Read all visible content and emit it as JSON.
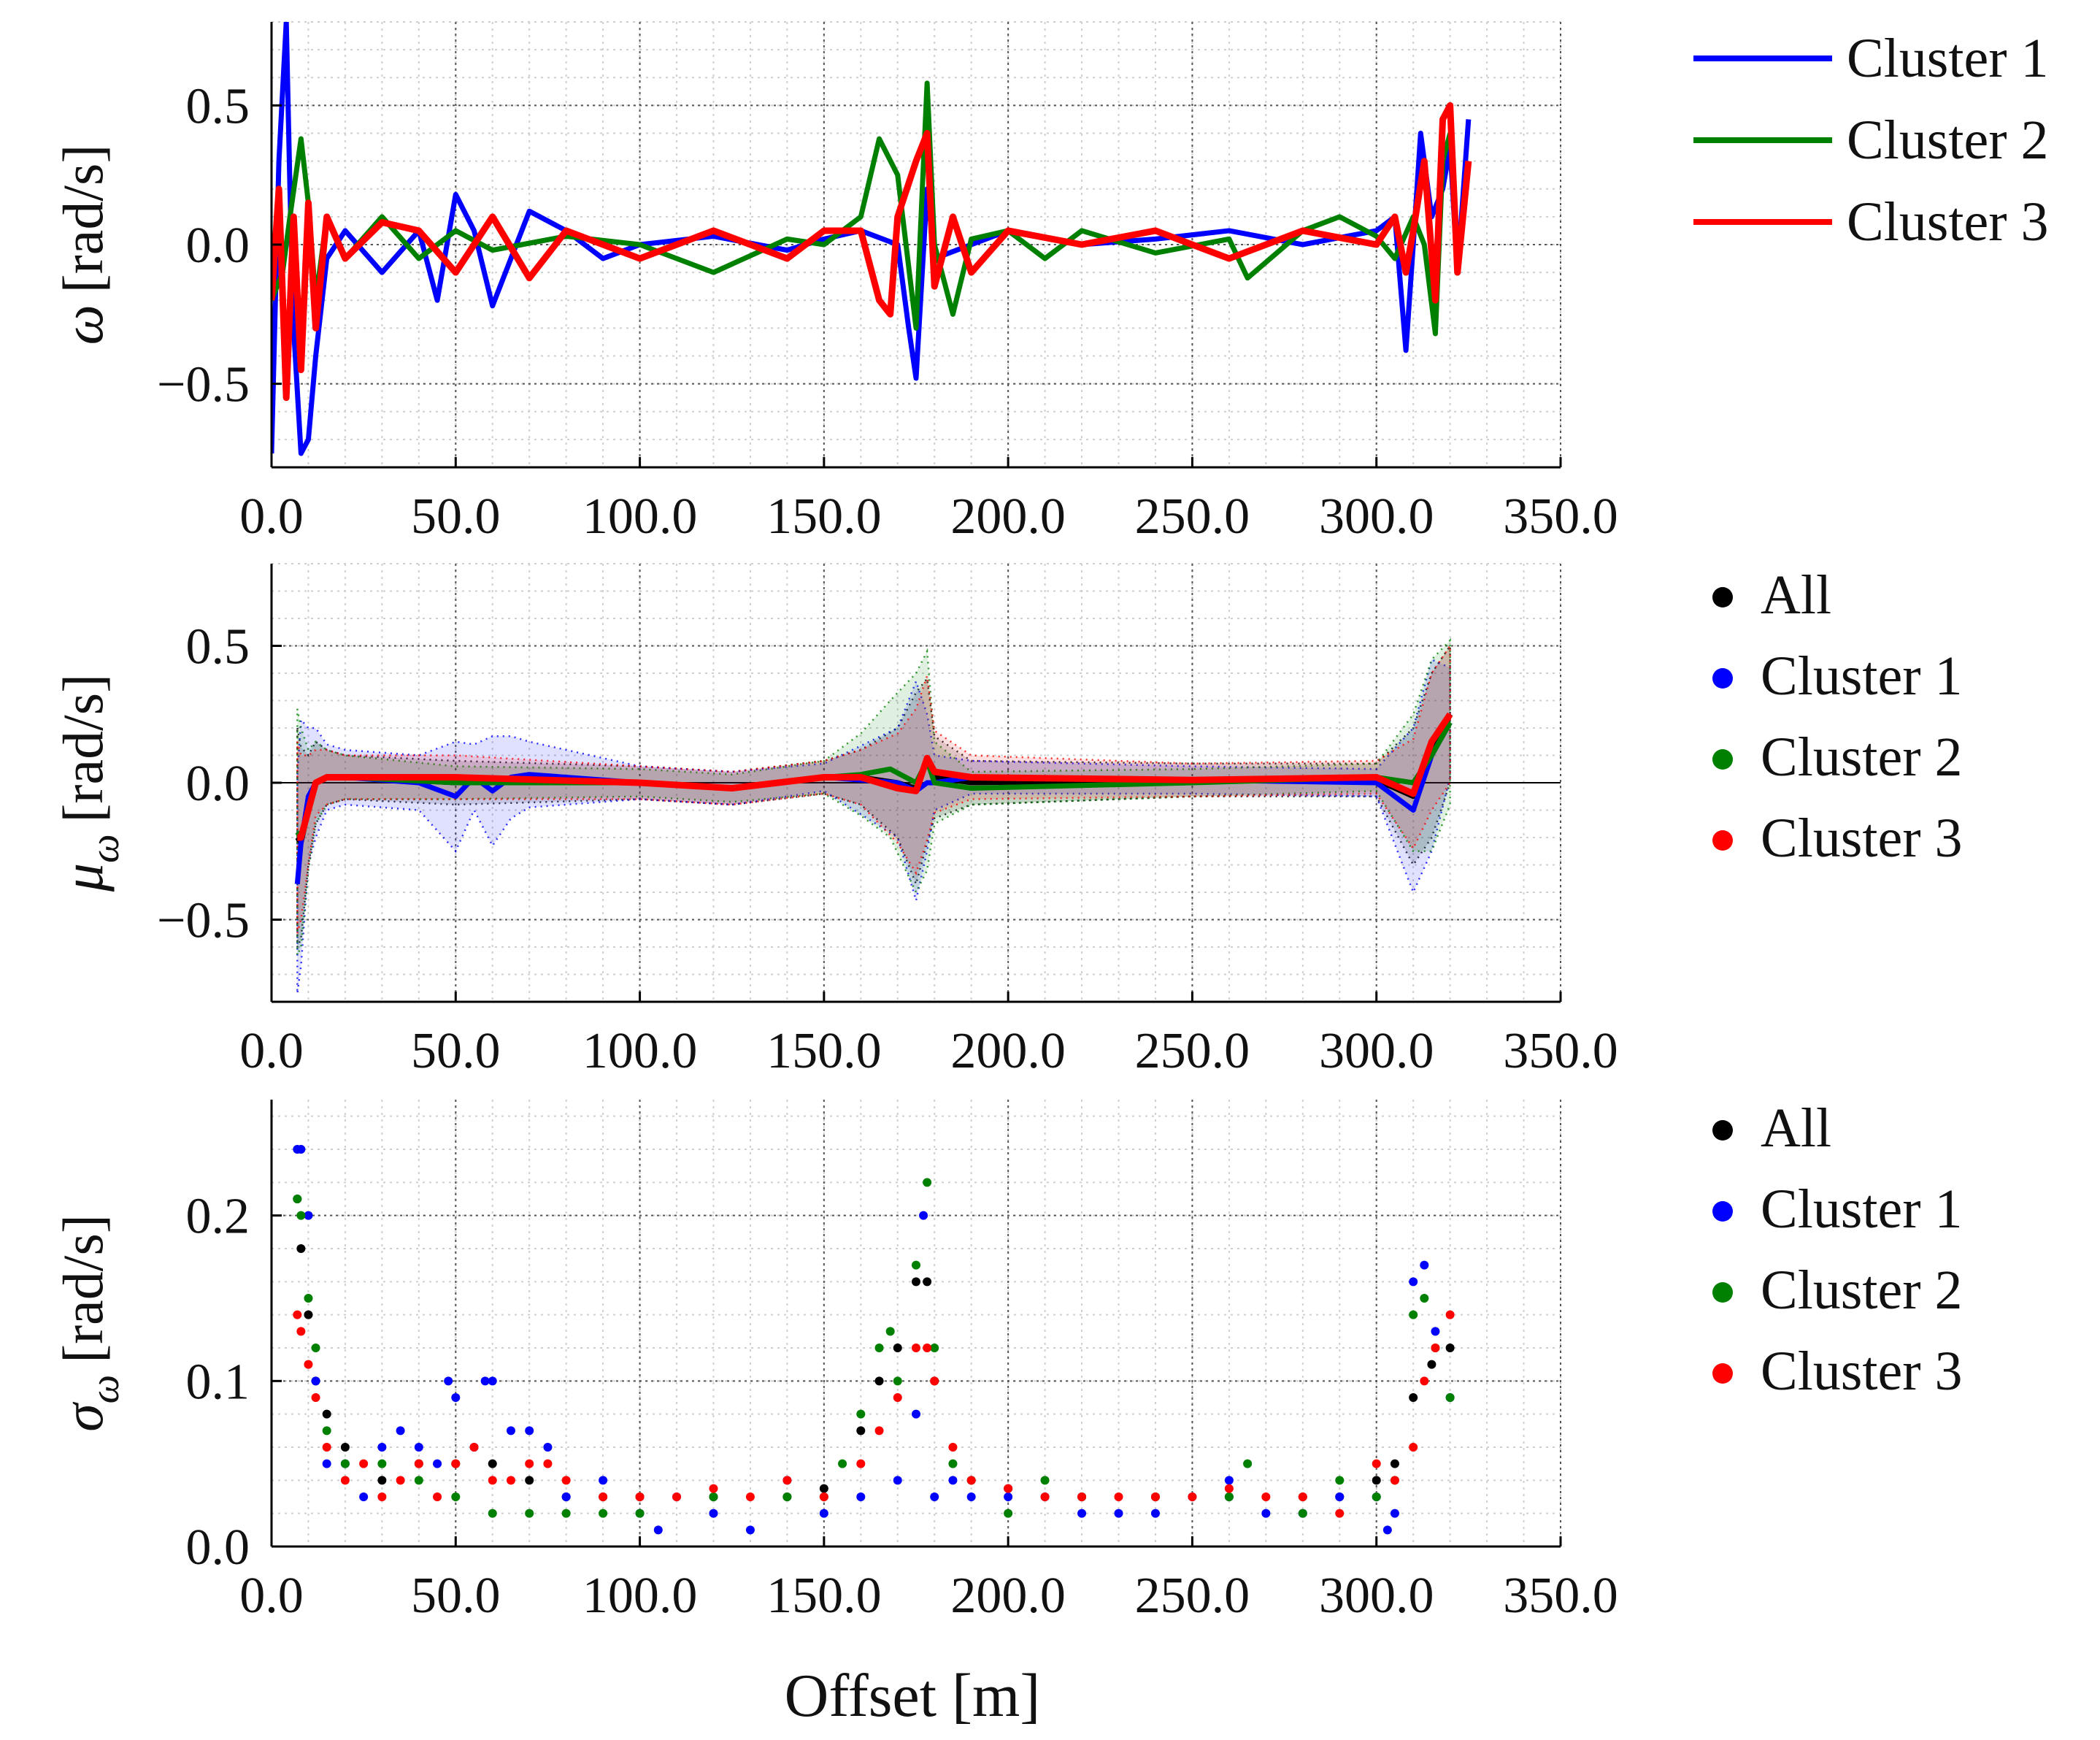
{
  "chart_data": [
    {
      "type": "line",
      "ylabel_symbol": "ω",
      "ylabel_unit": "[rad/s]",
      "xlim": [
        0,
        350
      ],
      "ylim": [
        -0.8,
        0.8
      ],
      "x_ticks": [
        "0.0",
        "50.0",
        "100.0",
        "150.0",
        "200.0",
        "250.0",
        "300.0",
        "350.0"
      ],
      "y_ticks": [
        {
          "value": -0.5,
          "label": "−0.5"
        },
        {
          "value": 0.0,
          "label": "0.0"
        },
        {
          "value": 0.5,
          "label": "0.5"
        }
      ],
      "grid": true,
      "legend_position": "right",
      "legend": [
        "Cluster 1",
        "Cluster 2",
        "Cluster 3"
      ],
      "series": [
        {
          "name": "Cluster 1",
          "color": "#0000ff",
          "x": [
            0,
            2,
            4,
            5,
            6,
            8,
            10,
            12,
            15,
            20,
            30,
            40,
            45,
            50,
            55,
            60,
            65,
            70,
            80,
            90,
            100,
            120,
            140,
            150,
            160,
            170,
            173,
            175,
            178,
            180,
            190,
            200,
            220,
            240,
            260,
            280,
            300,
            305,
            308,
            310,
            312,
            315,
            318,
            320,
            322,
            325
          ],
          "y": [
            -0.75,
            0.3,
            0.8,
            0.2,
            -0.3,
            -0.75,
            -0.7,
            -0.4,
            -0.05,
            0.05,
            -0.1,
            0.05,
            -0.2,
            0.18,
            0.05,
            -0.22,
            -0.05,
            0.12,
            0.05,
            -0.05,
            0.0,
            0.03,
            -0.02,
            0.02,
            0.05,
            0.0,
            -0.3,
            -0.48,
            0.2,
            -0.05,
            0.0,
            0.05,
            0.0,
            0.02,
            0.05,
            0.0,
            0.05,
            0.1,
            -0.38,
            0.0,
            0.4,
            0.1,
            0.2,
            0.35,
            -0.1,
            0.45
          ]
        },
        {
          "name": "Cluster 2",
          "color": "#008000",
          "x": [
            0,
            3,
            5,
            8,
            10,
            12,
            15,
            20,
            30,
            40,
            50,
            60,
            80,
            100,
            120,
            140,
            150,
            160,
            165,
            170,
            175,
            178,
            180,
            185,
            190,
            200,
            210,
            220,
            240,
            260,
            265,
            280,
            290,
            300,
            305,
            310,
            313,
            316,
            318,
            320
          ],
          "y": [
            -0.2,
            -0.1,
            0.1,
            0.38,
            0.15,
            -0.2,
            0.1,
            -0.05,
            0.1,
            -0.05,
            0.05,
            -0.02,
            0.03,
            0.0,
            -0.1,
            0.02,
            0.0,
            0.1,
            0.38,
            0.25,
            -0.3,
            0.58,
            0.0,
            -0.25,
            0.02,
            0.05,
            -0.05,
            0.05,
            -0.03,
            0.02,
            -0.12,
            0.05,
            0.1,
            0.03,
            -0.05,
            0.1,
            0.0,
            -0.32,
            0.3,
            0.4
          ]
        },
        {
          "name": "Cluster 3",
          "color": "#ff0000",
          "x": [
            0,
            2,
            4,
            6,
            8,
            10,
            12,
            15,
            20,
            30,
            40,
            50,
            60,
            70,
            80,
            100,
            120,
            140,
            150,
            160,
            165,
            168,
            170,
            175,
            178,
            180,
            185,
            190,
            200,
            220,
            240,
            260,
            280,
            300,
            305,
            308,
            310,
            313,
            316,
            318,
            320,
            322,
            325
          ],
          "y": [
            -0.2,
            0.2,
            -0.55,
            0.1,
            -0.45,
            0.15,
            -0.3,
            0.1,
            -0.05,
            0.08,
            0.05,
            -0.1,
            0.1,
            -0.12,
            0.05,
            -0.05,
            0.05,
            -0.05,
            0.05,
            0.05,
            -0.2,
            -0.25,
            0.1,
            0.3,
            0.4,
            -0.15,
            0.1,
            -0.1,
            0.05,
            0.0,
            0.05,
            -0.05,
            0.05,
            0.0,
            0.1,
            -0.1,
            0.05,
            0.3,
            -0.2,
            0.45,
            0.5,
            -0.1,
            0.3
          ]
        }
      ]
    },
    {
      "type": "line",
      "ylabel_symbol": "μ",
      "ylabel_sub": "ω",
      "ylabel_unit": "[rad/s]",
      "xlim": [
        0,
        350
      ],
      "ylim": [
        -0.8,
        0.8
      ],
      "x_ticks": [
        "0.0",
        "50.0",
        "100.0",
        "150.0",
        "200.0",
        "250.0",
        "300.0",
        "350.0"
      ],
      "y_ticks": [
        {
          "value": -0.5,
          "label": "−0.5"
        },
        {
          "value": 0.0,
          "label": "0.0"
        },
        {
          "value": 0.5,
          "label": "0.5"
        }
      ],
      "grid": true,
      "zero_line": true,
      "legend_position": "right",
      "legend": [
        "All",
        "Cluster 1",
        "Cluster 2",
        "Cluster 3"
      ],
      "series": [
        {
          "name": "All",
          "color": "#000000",
          "x": [
            7,
            8,
            10,
            12,
            15,
            20,
            50,
            100,
            125,
            150,
            160,
            170,
            175,
            178,
            180,
            190,
            250,
            300,
            310,
            315,
            320
          ],
          "y": [
            -0.2,
            -0.22,
            -0.1,
            0.0,
            0.02,
            0.02,
            0.0,
            0.0,
            -0.02,
            0.02,
            0.02,
            0.0,
            -0.02,
            0.08,
            0.02,
            0.0,
            0.01,
            0.01,
            -0.05,
            0.1,
            0.25
          ],
          "band": [
            0.4,
            0.35,
            0.2,
            0.15,
            0.1,
            0.08,
            0.08,
            0.06,
            0.06,
            0.06,
            0.1,
            0.2,
            0.35,
            0.3,
            0.15,
            0.08,
            0.06,
            0.06,
            0.25,
            0.3,
            0.25
          ]
        },
        {
          "name": "Cluster 1",
          "color": "#0000ff",
          "x": [
            7,
            8,
            10,
            12,
            15,
            20,
            40,
            50,
            55,
            60,
            65,
            70,
            100,
            125,
            150,
            170,
            175,
            178,
            180,
            190,
            250,
            300,
            310,
            315,
            320
          ],
          "y": [
            -0.37,
            -0.22,
            -0.05,
            0.0,
            0.02,
            0.02,
            0.0,
            -0.05,
            0.02,
            -0.03,
            0.02,
            0.03,
            0.0,
            -0.02,
            0.02,
            0.0,
            -0.03,
            0.0,
            0.0,
            0.02,
            0.01,
            0.0,
            -0.1,
            0.1,
            0.22
          ],
          "band": [
            0.4,
            0.45,
            0.25,
            0.2,
            0.12,
            0.1,
            0.1,
            0.2,
            0.12,
            0.2,
            0.15,
            0.12,
            0.06,
            0.06,
            0.05,
            0.2,
            0.4,
            0.25,
            0.1,
            0.06,
            0.05,
            0.05,
            0.3,
            0.35,
            0.2
          ]
        },
        {
          "name": "Cluster 2",
          "color": "#008000",
          "x": [
            7,
            8,
            10,
            12,
            15,
            20,
            50,
            100,
            125,
            150,
            160,
            168,
            175,
            178,
            180,
            190,
            250,
            300,
            310,
            315,
            320
          ],
          "y": [
            -0.18,
            -0.2,
            -0.1,
            0.0,
            0.02,
            0.02,
            0.0,
            0.0,
            -0.02,
            0.02,
            0.03,
            0.05,
            0.0,
            0.08,
            0.0,
            -0.02,
            0.0,
            0.02,
            0.0,
            0.1,
            0.22
          ],
          "band": [
            0.45,
            0.4,
            0.22,
            0.15,
            0.1,
            0.08,
            0.06,
            0.05,
            0.05,
            0.06,
            0.15,
            0.25,
            0.4,
            0.4,
            0.15,
            0.06,
            0.05,
            0.05,
            0.25,
            0.35,
            0.3
          ]
        },
        {
          "name": "Cluster 3",
          "color": "#ff0000",
          "x": [
            7,
            8,
            10,
            12,
            15,
            20,
            50,
            100,
            125,
            150,
            160,
            170,
            175,
            178,
            180,
            190,
            250,
            300,
            310,
            315,
            320
          ],
          "y": [
            -0.2,
            -0.2,
            -0.1,
            0.0,
            0.02,
            0.02,
            0.02,
            0.0,
            -0.02,
            0.02,
            0.02,
            -0.02,
            -0.03,
            0.09,
            0.04,
            0.02,
            0.01,
            0.02,
            -0.04,
            0.15,
            0.25
          ],
          "band": [
            0.35,
            0.3,
            0.2,
            0.12,
            0.1,
            0.08,
            0.08,
            0.06,
            0.06,
            0.06,
            0.1,
            0.2,
            0.3,
            0.3,
            0.15,
            0.08,
            0.06,
            0.06,
            0.2,
            0.25,
            0.25
          ]
        }
      ]
    },
    {
      "type": "scatter",
      "ylabel_symbol": "σ",
      "ylabel_sub": "ω",
      "ylabel_unit": "[rad/s]",
      "xlabel": "Offset [m]",
      "xlim": [
        0,
        350
      ],
      "ylim": [
        0,
        0.27
      ],
      "x_ticks": [
        "0.0",
        "50.0",
        "100.0",
        "150.0",
        "200.0",
        "250.0",
        "300.0",
        "350.0"
      ],
      "y_ticks": [
        {
          "value": 0.0,
          "label": "0.0"
        },
        {
          "value": 0.1,
          "label": "0.1"
        },
        {
          "value": 0.2,
          "label": "0.2"
        }
      ],
      "grid": true,
      "legend_position": "right",
      "legend": [
        "All",
        "Cluster 1",
        "Cluster 2",
        "Cluster 3"
      ],
      "series": [
        {
          "name": "All",
          "color": "#000000",
          "x": [
            7,
            8,
            10,
            12,
            15,
            20,
            30,
            40,
            50,
            60,
            70,
            80,
            90,
            100,
            120,
            140,
            150,
            160,
            165,
            170,
            175,
            178,
            180,
            190,
            200,
            220,
            240,
            260,
            280,
            290,
            300,
            305,
            310,
            315,
            320
          ],
          "y": [
            0.21,
            0.18,
            0.14,
            0.1,
            0.08,
            0.06,
            0.04,
            0.05,
            0.05,
            0.05,
            0.04,
            0.03,
            0.03,
            0.03,
            0.03,
            0.03,
            0.035,
            0.07,
            0.1,
            0.12,
            0.16,
            0.16,
            0.1,
            0.04,
            0.035,
            0.03,
            0.03,
            0.03,
            0.03,
            0.03,
            0.04,
            0.05,
            0.09,
            0.11,
            0.12
          ]
        },
        {
          "name": "Cluster 1",
          "color": "#0000ff",
          "x": [
            7,
            8,
            10,
            12,
            15,
            20,
            25,
            30,
            35,
            40,
            45,
            48,
            50,
            55,
            58,
            60,
            65,
            70,
            75,
            80,
            90,
            100,
            105,
            110,
            120,
            130,
            140,
            150,
            160,
            170,
            175,
            177,
            180,
            185,
            190,
            200,
            210,
            220,
            230,
            240,
            250,
            260,
            270,
            280,
            290,
            300,
            303,
            305,
            310,
            313,
            316,
            320
          ],
          "y": [
            0.24,
            0.24,
            0.2,
            0.1,
            0.05,
            0.05,
            0.03,
            0.06,
            0.07,
            0.06,
            0.05,
            0.1,
            0.09,
            0.06,
            0.1,
            0.1,
            0.07,
            0.07,
            0.06,
            0.03,
            0.04,
            0.02,
            0.01,
            0.03,
            0.02,
            0.01,
            0.04,
            0.02,
            0.03,
            0.04,
            0.08,
            0.2,
            0.03,
            0.04,
            0.03,
            0.03,
            0.03,
            0.02,
            0.02,
            0.02,
            0.03,
            0.04,
            0.02,
            0.02,
            0.03,
            0.03,
            0.01,
            0.02,
            0.16,
            0.17,
            0.13,
            0.09
          ]
        },
        {
          "name": "Cluster 2",
          "color": "#008000",
          "x": [
            7,
            8,
            10,
            12,
            15,
            20,
            30,
            40,
            50,
            60,
            70,
            80,
            90,
            100,
            120,
            140,
            150,
            155,
            160,
            165,
            168,
            170,
            175,
            178,
            180,
            185,
            190,
            200,
            210,
            220,
            240,
            260,
            265,
            280,
            290,
            300,
            305,
            310,
            313,
            316,
            320
          ],
          "y": [
            0.21,
            0.2,
            0.15,
            0.12,
            0.07,
            0.05,
            0.05,
            0.04,
            0.03,
            0.02,
            0.02,
            0.02,
            0.02,
            0.02,
            0.03,
            0.03,
            0.03,
            0.05,
            0.08,
            0.12,
            0.13,
            0.1,
            0.17,
            0.22,
            0.12,
            0.05,
            0.04,
            0.02,
            0.04,
            0.03,
            0.03,
            0.03,
            0.05,
            0.02,
            0.04,
            0.03,
            0.04,
            0.14,
            0.15,
            0.12,
            0.09
          ]
        },
        {
          "name": "Cluster 3",
          "color": "#ff0000",
          "x": [
            7,
            8,
            10,
            12,
            15,
            20,
            25,
            30,
            35,
            40,
            45,
            50,
            55,
            60,
            65,
            70,
            75,
            80,
            90,
            100,
            110,
            120,
            130,
            140,
            150,
            160,
            165,
            170,
            175,
            178,
            180,
            185,
            190,
            200,
            210,
            220,
            230,
            240,
            250,
            260,
            270,
            280,
            290,
            300,
            305,
            310,
            313,
            316,
            320
          ],
          "y": [
            0.14,
            0.13,
            0.11,
            0.09,
            0.06,
            0.04,
            0.05,
            0.03,
            0.04,
            0.05,
            0.03,
            0.05,
            0.06,
            0.04,
            0.04,
            0.05,
            0.05,
            0.04,
            0.03,
            0.03,
            0.03,
            0.035,
            0.03,
            0.04,
            0.03,
            0.05,
            0.07,
            0.09,
            0.12,
            0.12,
            0.1,
            0.06,
            0.04,
            0.035,
            0.03,
            0.03,
            0.03,
            0.03,
            0.03,
            0.035,
            0.03,
            0.03,
            0.02,
            0.05,
            0.04,
            0.06,
            0.1,
            0.12,
            0.14
          ]
        }
      ]
    }
  ]
}
